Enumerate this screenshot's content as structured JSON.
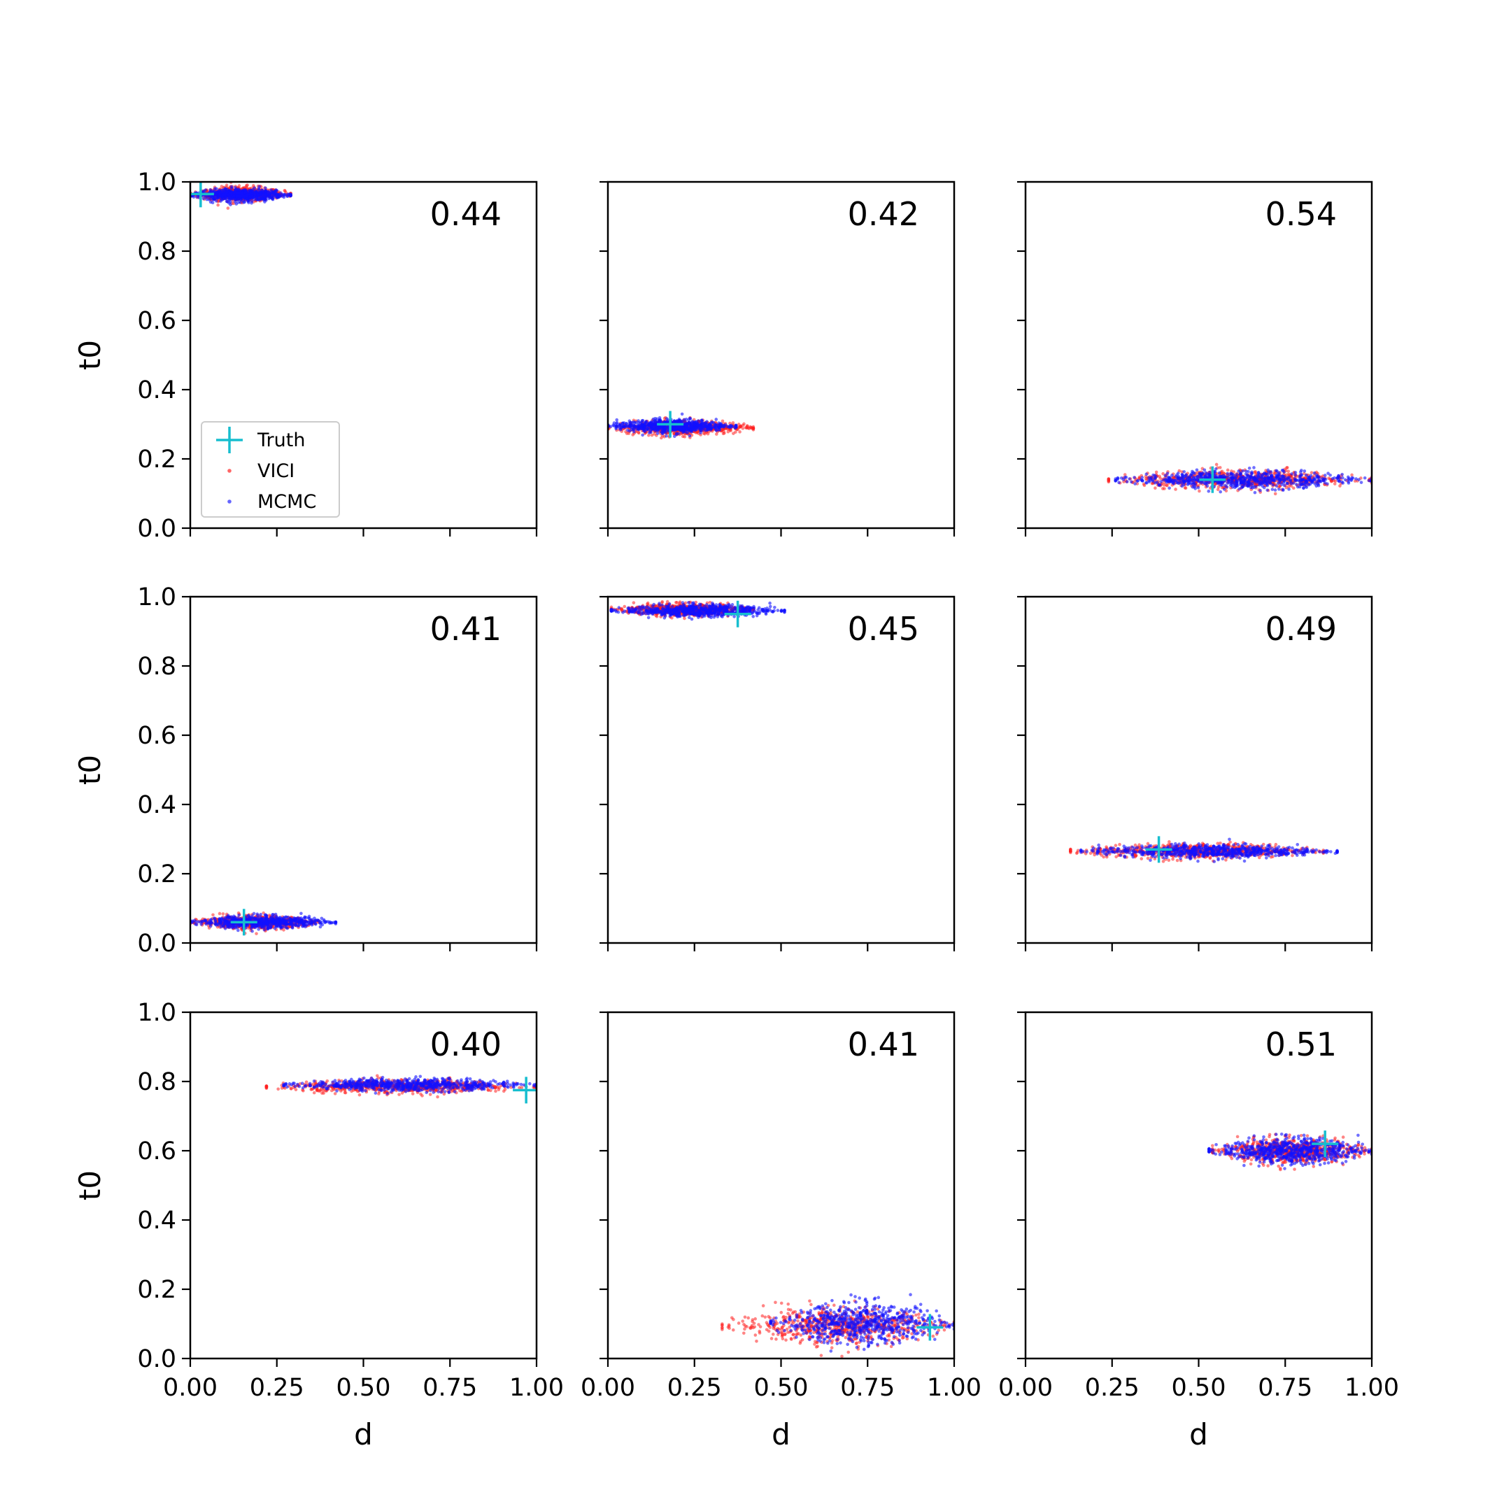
{
  "chart_data": {
    "type": "scatter",
    "layout": "3x3 grid of scatter panels",
    "xlabel": "d",
    "ylabel": "t0",
    "xlim": [
      0,
      1
    ],
    "ylim": [
      0,
      1
    ],
    "xticks": [
      "0.00",
      "0.25",
      "0.50",
      "0.75",
      "1.00"
    ],
    "yticks": [
      "0.0",
      "0.2",
      "0.4",
      "0.6",
      "0.8",
      "1.0"
    ],
    "grid": false,
    "legend": {
      "location": "lower-left of first panel",
      "entries": [
        {
          "label": "Truth",
          "marker": "plus",
          "color": "#17becf"
        },
        {
          "label": "VICI",
          "marker": "dot",
          "color": "#ff0000"
        },
        {
          "label": "MCMC",
          "marker": "dot",
          "color": "#0000ff"
        }
      ]
    },
    "panels": [
      {
        "annotation": "0.44",
        "truth": [
          0.03,
          0.965
        ],
        "vici": {
          "x": [
            0.0,
            0.29
          ],
          "y_center": 0.965,
          "y_spread": 0.014
        },
        "mcmc": {
          "x": [
            0.0,
            0.29
          ],
          "y_center": 0.962,
          "y_spread": 0.012
        }
      },
      {
        "annotation": "0.42",
        "truth": [
          0.18,
          0.3
        ],
        "vici": {
          "x": [
            0.0,
            0.42
          ],
          "y_center": 0.29,
          "y_spread": 0.015
        },
        "mcmc": {
          "x": [
            0.0,
            0.37
          ],
          "y_center": 0.295,
          "y_spread": 0.013
        }
      },
      {
        "annotation": "0.54",
        "truth": [
          0.54,
          0.14
        ],
        "vici": {
          "x": [
            0.24,
            1.0
          ],
          "y_center": 0.14,
          "y_spread": 0.018
        },
        "mcmc": {
          "x": [
            0.26,
            1.0
          ],
          "y_center": 0.14,
          "y_spread": 0.017
        }
      },
      {
        "annotation": "0.41",
        "truth": [
          0.155,
          0.06
        ],
        "vici": {
          "x": [
            0.0,
            0.37
          ],
          "y_center": 0.06,
          "y_spread": 0.013
        },
        "mcmc": {
          "x": [
            0.0,
            0.42
          ],
          "y_center": 0.06,
          "y_spread": 0.012
        }
      },
      {
        "annotation": "0.45",
        "truth": [
          0.375,
          0.95
        ],
        "vici": {
          "x": [
            0.01,
            0.42
          ],
          "y_center": 0.963,
          "y_spread": 0.012
        },
        "mcmc": {
          "x": [
            0.01,
            0.51
          ],
          "y_center": 0.96,
          "y_spread": 0.012
        }
      },
      {
        "annotation": "0.49",
        "truth": [
          0.385,
          0.27
        ],
        "vici": {
          "x": [
            0.13,
            0.86
          ],
          "y_center": 0.265,
          "y_spread": 0.015
        },
        "mcmc": {
          "x": [
            0.16,
            0.9
          ],
          "y_center": 0.265,
          "y_spread": 0.013
        }
      },
      {
        "annotation": "0.40",
        "truth": [
          0.97,
          0.775
        ],
        "vici": {
          "x": [
            0.22,
            1.0
          ],
          "y_center": 0.785,
          "y_spread": 0.013
        },
        "mcmc": {
          "x": [
            0.27,
            1.0
          ],
          "y_center": 0.79,
          "y_spread": 0.012
        }
      },
      {
        "annotation": "0.41",
        "truth": [
          0.93,
          0.09
        ],
        "vici": {
          "x": [
            0.33,
            1.0
          ],
          "y_center": 0.095,
          "y_spread": 0.035
        },
        "mcmc": {
          "x": [
            0.47,
            1.0
          ],
          "y_center": 0.1,
          "y_spread": 0.04
        }
      },
      {
        "annotation": "0.51",
        "truth": [
          0.865,
          0.62
        ],
        "vici": {
          "x": [
            0.54,
            1.0
          ],
          "y_center": 0.6,
          "y_spread": 0.025
        },
        "mcmc": {
          "x": [
            0.53,
            1.0
          ],
          "y_center": 0.6,
          "y_spread": 0.025
        }
      }
    ]
  }
}
